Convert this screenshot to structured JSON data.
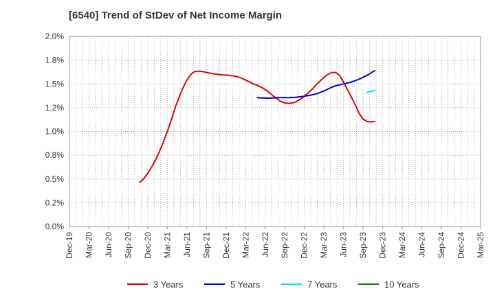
{
  "chart_data": {
    "type": "line",
    "title": "[6540]  Trend of StDev of Net Income Margin",
    "xlabel": "",
    "ylabel": "",
    "x_categories": [
      "Dec-19",
      "Mar-20",
      "Jun-20",
      "Sep-20",
      "Dec-20",
      "Mar-21",
      "Jun-21",
      "Sep-21",
      "Dec-21",
      "Mar-22",
      "Jun-22",
      "Sep-22",
      "Dec-22",
      "Mar-23",
      "Jun-23",
      "Sep-23",
      "Dec-23",
      "Mar-24",
      "Jun-24",
      "Sep-24",
      "Dec-24",
      "Mar-25"
    ],
    "y_tick_labels": [
      "0.0%",
      "0.2%",
      "0.5%",
      "0.8%",
      "1.0%",
      "1.2%",
      "1.5%",
      "1.8%",
      "2.0%"
    ],
    "ylim": [
      0,
      2.0
    ],
    "grid": true,
    "legend_position": "bottom",
    "series": [
      {
        "name": "3 Years",
        "color": "#dd0000",
        "points": [
          [
            3.6,
            0.465
          ],
          [
            3.8,
            0.505
          ],
          [
            4.0,
            0.56
          ],
          [
            4.2,
            0.625
          ],
          [
            4.4,
            0.7
          ],
          [
            4.6,
            0.79
          ],
          [
            4.8,
            0.89
          ],
          [
            5.0,
            1.0
          ],
          [
            5.2,
            1.12
          ],
          [
            5.4,
            1.25
          ],
          [
            5.6,
            1.36
          ],
          [
            5.8,
            1.46
          ],
          [
            6.0,
            1.54
          ],
          [
            6.2,
            1.6
          ],
          [
            6.4,
            1.63
          ],
          [
            6.6,
            1.635
          ],
          [
            6.8,
            1.63
          ],
          [
            7.0,
            1.62
          ],
          [
            7.4,
            1.605
          ],
          [
            7.8,
            1.595
          ],
          [
            8.2,
            1.59
          ],
          [
            8.6,
            1.575
          ],
          [
            8.8,
            1.56
          ],
          [
            9.0,
            1.54
          ],
          [
            9.2,
            1.52
          ],
          [
            9.4,
            1.5
          ],
          [
            9.6,
            1.485
          ],
          [
            9.8,
            1.465
          ],
          [
            10.0,
            1.44
          ],
          [
            10.2,
            1.41
          ],
          [
            10.4,
            1.375
          ],
          [
            10.6,
            1.345
          ],
          [
            10.8,
            1.315
          ],
          [
            11.0,
            1.3
          ],
          [
            11.2,
            1.295
          ],
          [
            11.4,
            1.3
          ],
          [
            11.6,
            1.315
          ],
          [
            11.8,
            1.34
          ],
          [
            12.0,
            1.37
          ],
          [
            12.2,
            1.405
          ],
          [
            12.4,
            1.445
          ],
          [
            12.6,
            1.49
          ],
          [
            12.8,
            1.53
          ],
          [
            13.0,
            1.57
          ],
          [
            13.2,
            1.6
          ],
          [
            13.4,
            1.62
          ],
          [
            13.6,
            1.62
          ],
          [
            13.8,
            1.59
          ],
          [
            14.0,
            1.52
          ],
          [
            14.2,
            1.44
          ],
          [
            14.4,
            1.36
          ],
          [
            14.6,
            1.28
          ],
          [
            14.8,
            1.19
          ],
          [
            15.0,
            1.13
          ],
          [
            15.2,
            1.105
          ],
          [
            15.4,
            1.1
          ],
          [
            15.6,
            1.105
          ]
        ]
      },
      {
        "name": "5 Years",
        "color": "#0000cc",
        "points": [
          [
            9.6,
            1.355
          ],
          [
            9.8,
            1.352
          ],
          [
            10.0,
            1.35
          ],
          [
            10.2,
            1.35
          ],
          [
            10.4,
            1.352
          ],
          [
            10.6,
            1.355
          ],
          [
            10.8,
            1.355
          ],
          [
            11.0,
            1.355
          ],
          [
            11.2,
            1.355
          ],
          [
            11.4,
            1.357
          ],
          [
            11.6,
            1.36
          ],
          [
            11.8,
            1.365
          ],
          [
            12.0,
            1.37
          ],
          [
            12.2,
            1.378
          ],
          [
            12.4,
            1.385
          ],
          [
            12.6,
            1.395
          ],
          [
            12.8,
            1.41
          ],
          [
            13.0,
            1.425
          ],
          [
            13.2,
            1.445
          ],
          [
            13.4,
            1.465
          ],
          [
            13.6,
            1.48
          ],
          [
            13.8,
            1.49
          ],
          [
            14.0,
            1.5
          ],
          [
            14.2,
            1.51
          ],
          [
            14.4,
            1.52
          ],
          [
            14.6,
            1.535
          ],
          [
            14.8,
            1.55
          ],
          [
            15.0,
            1.57
          ],
          [
            15.2,
            1.59
          ],
          [
            15.4,
            1.615
          ],
          [
            15.6,
            1.64
          ]
        ]
      },
      {
        "name": "7 Years",
        "color": "#00e5e5",
        "points": [
          [
            15.2,
            1.41
          ],
          [
            15.4,
            1.42
          ],
          [
            15.6,
            1.435
          ]
        ]
      },
      {
        "name": "10 Years",
        "color": "#008000",
        "points": []
      }
    ]
  }
}
